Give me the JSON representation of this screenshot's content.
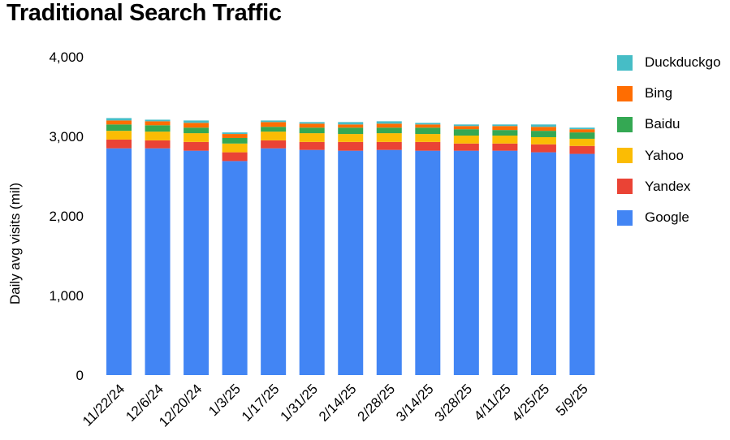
{
  "chart_data": {
    "type": "bar",
    "stacked": true,
    "title": "Traditional Search Traffic",
    "xlabel": "",
    "ylabel": "Daily avg visits (mil)",
    "ylim": [
      0,
      4000
    ],
    "yticks": [
      0,
      1000,
      2000,
      3000,
      4000
    ],
    "ytick_labels": [
      "0",
      "1,000",
      "2,000",
      "3,000",
      "4,000"
    ],
    "grid": false,
    "legend_position": "right",
    "categories": [
      "11/22/24",
      "12/6/24",
      "12/20/24",
      "1/3/25",
      "1/17/25",
      "1/31/25",
      "2/14/25",
      "2/28/25",
      "3/14/25",
      "3/28/25",
      "4/11/25",
      "4/25/25",
      "5/9/25"
    ],
    "series": [
      {
        "name": "Google",
        "color": "#4285f4",
        "values": [
          2850,
          2850,
          2820,
          2690,
          2850,
          2830,
          2820,
          2830,
          2820,
          2820,
          2820,
          2800,
          2780
        ]
      },
      {
        "name": "Yandex",
        "color": "#ea4335",
        "values": [
          110,
          100,
          110,
          110,
          100,
          100,
          110,
          100,
          110,
          90,
          90,
          100,
          100
        ]
      },
      {
        "name": "Yahoo",
        "color": "#fbbc04",
        "values": [
          110,
          110,
          110,
          110,
          110,
          110,
          100,
          110,
          100,
          100,
          100,
          90,
          90
        ]
      },
      {
        "name": "Baidu",
        "color": "#34a853",
        "values": [
          80,
          80,
          70,
          70,
          60,
          70,
          80,
          70,
          80,
          80,
          70,
          80,
          80
        ]
      },
      {
        "name": "Bing",
        "color": "#ff6d01",
        "values": [
          50,
          50,
          60,
          50,
          60,
          50,
          40,
          50,
          40,
          40,
          50,
          50,
          40
        ]
      },
      {
        "name": "Duckduckgo",
        "color": "#46bdc6",
        "values": [
          30,
          20,
          30,
          20,
          20,
          20,
          30,
          30,
          20,
          20,
          20,
          30,
          20
        ]
      }
    ]
  }
}
